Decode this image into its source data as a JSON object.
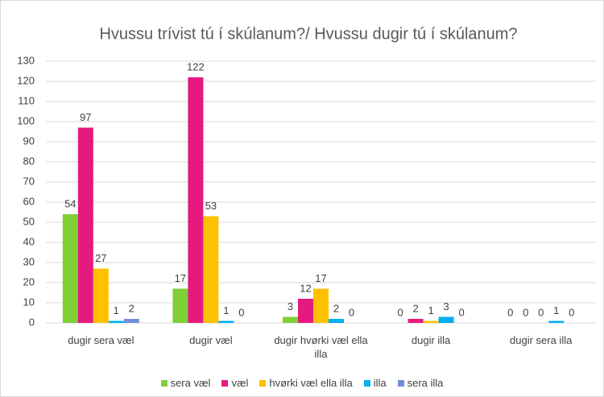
{
  "chart_data": {
    "type": "bar",
    "title": "Hvussu trívist tú í skúlanum?/ Hvussu dugir tú í skúlanum?",
    "categories": [
      "dugir sera væl",
      "dugir væl",
      "dugir hvørki væl ella illa",
      "dugir illa",
      "dugir sera illa"
    ],
    "series": [
      {
        "name": "sera væl",
        "color": "#7fcf37",
        "values": [
          54,
          17,
          3,
          0,
          0
        ]
      },
      {
        "name": "væl",
        "color": "#e6197f",
        "values": [
          97,
          122,
          12,
          2,
          0
        ]
      },
      {
        "name": "hvørki væl ella illa",
        "color": "#ffc000",
        "values": [
          27,
          53,
          17,
          1,
          0
        ]
      },
      {
        "name": "illa",
        "color": "#00b0f0",
        "values": [
          1,
          1,
          2,
          3,
          1
        ]
      },
      {
        "name": "sera illa",
        "color": "#6f8fd6",
        "values": [
          2,
          0,
          0,
          0,
          0
        ]
      }
    ],
    "ylim": [
      0,
      130
    ],
    "yticks": [
      0,
      10,
      20,
      30,
      40,
      50,
      60,
      70,
      80,
      90,
      100,
      110,
      120,
      130
    ],
    "grid": true,
    "legend": "bottom"
  }
}
